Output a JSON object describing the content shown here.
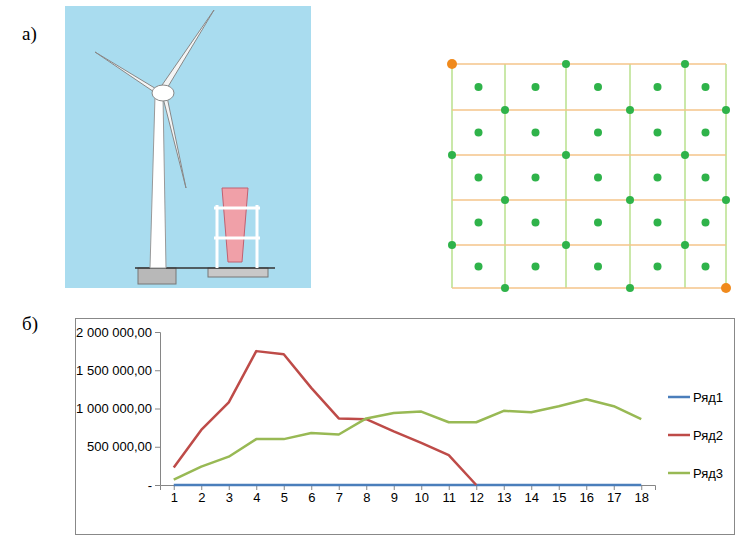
{
  "panel_labels": [
    "а)",
    "б)"
  ],
  "chart_data": {
    "type": "line",
    "categories": [
      "1",
      "2",
      "3",
      "4",
      "5",
      "6",
      "7",
      "8",
      "9",
      "10",
      "11",
      "12",
      "13",
      "14",
      "15",
      "16",
      "17",
      "18"
    ],
    "series": [
      {
        "name": "Ряд1",
        "color": "#4a7ebb",
        "values": [
          0,
          0,
          0,
          0,
          0,
          0,
          0,
          0,
          0,
          0,
          0,
          0,
          0,
          0,
          0,
          0,
          0,
          0
        ]
      },
      {
        "name": "Ряд2",
        "color": "#be4b48",
        "values": [
          230000,
          720000,
          1080000,
          1750000,
          1710000,
          1270000,
          870000,
          860000,
          700000,
          550000,
          390000,
          0,
          null,
          null,
          null,
          null,
          null,
          null
        ]
      },
      {
        "name": "Ряд3",
        "color": "#98b954",
        "values": [
          70000,
          240000,
          370000,
          600000,
          600000,
          680000,
          660000,
          870000,
          940000,
          960000,
          820000,
          820000,
          970000,
          950000,
          1030000,
          1120000,
          1030000,
          860000
        ]
      }
    ],
    "ylim": [
      0,
      2000000
    ],
    "yticks": [
      {
        "value": 0,
        "label": "-"
      },
      {
        "value": 500000,
        "label": "500 000,00"
      },
      {
        "value": 1000000,
        "label": "1 000 000,00"
      },
      {
        "value": 1500000,
        "label": "1 500 000,00"
      },
      {
        "value": 2000000,
        "label": "2 000 000,00"
      }
    ],
    "grid": false,
    "legend": "right"
  }
}
